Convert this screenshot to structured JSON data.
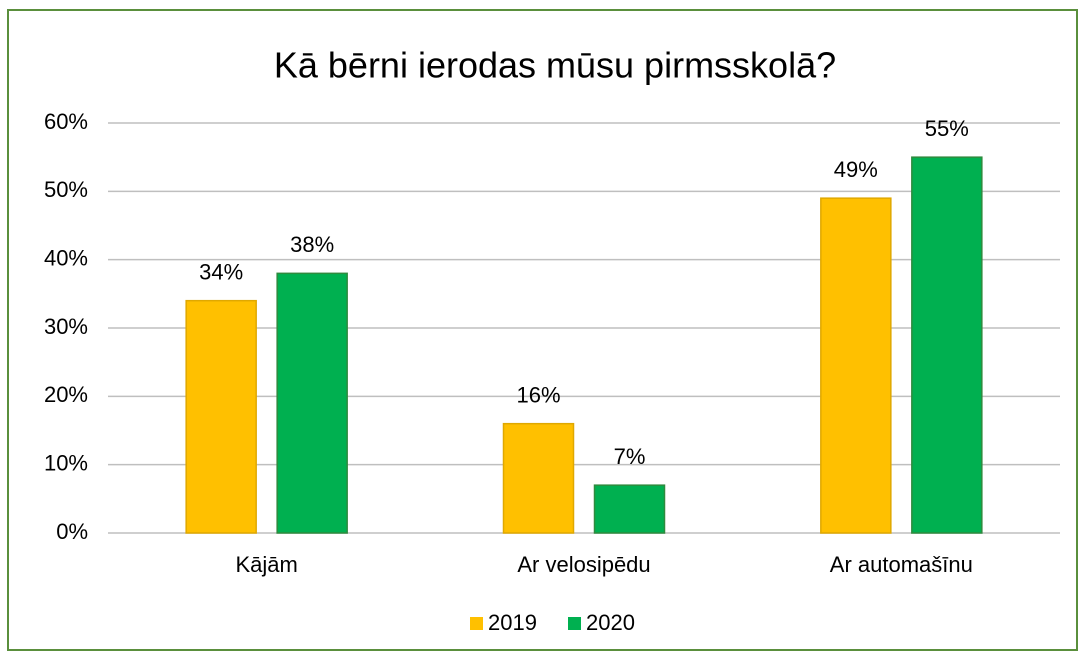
{
  "chart_data": {
    "type": "bar",
    "title": "Kā bērni ierodas mūsu pirmsskolā?",
    "categories": [
      "Kājām",
      "Ar velosipēdu",
      "Ar automašīnu"
    ],
    "series": [
      {
        "name": "2019",
        "color": "#ffc000",
        "values": [
          34,
          16,
          49
        ],
        "value_labels": [
          "34%",
          "16%",
          "49%"
        ]
      },
      {
        "name": "2020",
        "color": "#00b050",
        "values": [
          38,
          7,
          55
        ],
        "value_labels": [
          "38%",
          "7%",
          "55%"
        ]
      }
    ],
    "ylim": [
      0,
      60
    ],
    "yticks": [
      {
        "value": 0,
        "label": "0%"
      },
      {
        "value": 10,
        "label": "10%"
      },
      {
        "value": 20,
        "label": "20%"
      },
      {
        "value": 30,
        "label": "30%"
      },
      {
        "value": 40,
        "label": "40%"
      },
      {
        "value": 50,
        "label": "50%"
      },
      {
        "value": 60,
        "label": "60%"
      }
    ],
    "grid": true,
    "legend": "bottom"
  }
}
